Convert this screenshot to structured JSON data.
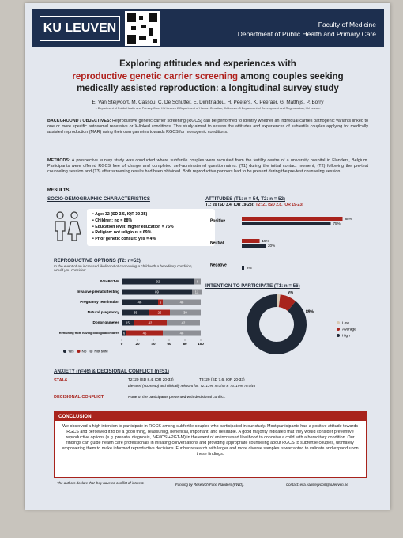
{
  "header": {
    "university": "KU LEUVEN",
    "faculty": "Faculty of Medicine",
    "department": "Department of Public Health and Primary Care"
  },
  "title": {
    "line1": "Exploring attitudes and experiences with",
    "highlight": "reproductive genetic carrier screening",
    "line2_rest": "among couples seeking",
    "line3": "medically assisted reproduction: a longitudinal survey study"
  },
  "authors": "E. Van Steijvoort, M. Cassou, C. De Schutter, E. Dimitriadou, H. Peeters, K. Peeraer, G. Matthijs, P. Borry",
  "affiliations": "1 Department of Public Health and Primary Care, KU Leuven 2 Department of Human Genetics, KU Leuven 3 Department of Development and Regeneration, KU Leuven",
  "background": {
    "label": "BACKGROUND / OBJECTIVES:",
    "text": "Reproductive genetic carrier screening (RGCS) can be performed to identify whether an individual carries pathogenic variants linked to one or more specific autosomal recessive or X-linked conditions. This study aimed to assess the attitudes and experiences of subfertile couples applying for medically assisted reproduction (MAR) using their own gametes towards RGCS for monogenic conditions."
  },
  "methods": {
    "label": "METHODS:",
    "text": "A prospective survey study was conducted where subfertile couples were recruited from the fertility centre of a university hospital in Flanders, Belgium. Participants were offered RGCS free of charge and completed self-administered questionnaires: (T1) during the initial contact moment, (T2) following the pre-test counseling session and (T3) after screening results had been obtained. Both reproductive partners had to be present during the pre-test counseling session."
  },
  "results_label": "RESULTS:",
  "socio": {
    "heading": "SOCIO-DEMOGRAPHIC CHARACTERISTICS",
    "items": [
      "Age: 32 (SD 3.5, IQR 30-35)",
      "Children: no = 88%",
      "Education level: higher education = 75%",
      "Religion: not religious = 69%",
      "Prior genetic consult: yes = 4%"
    ]
  },
  "chart_data": [
    {
      "type": "grouped-hbar",
      "title": "ATTITUDES (T1: n = 54, T2: n = 52)",
      "subtitle_t1": "T1: 20 (SD 3.4, IQR 19-23);",
      "subtitle_t2": "T2: 21 (SD 2.8, IQR 19-23)",
      "categories": [
        "Positive",
        "Neutral",
        "Negative"
      ],
      "xlim": [
        0,
        100
      ],
      "series": [
        {
          "color": "#a8231c",
          "values": [
            85,
            15,
            null
          ],
          "value_labels": [
            "85%",
            "15%",
            null
          ]
        },
        {
          "color": "#1f2836",
          "values": [
            75,
            20,
            2
          ],
          "value_labels": [
            "75%",
            "20%",
            "2%"
          ]
        }
      ]
    },
    {
      "type": "stacked-hbar",
      "title": "REPRODUCTIVE OPTIONS (T2: n=52)",
      "subtitle": "In the event of an increased likelihood of conceiving a child with a hereditary condition, would you consider:",
      "categories": [
        "IVF+PGT-M",
        "Invasive prenatal testing",
        "Pregnancy termination",
        "Natural pregnancy",
        "Donor gametes",
        "Refraining from having biological children"
      ],
      "xlim": [
        0,
        100
      ],
      "xticks": [
        0,
        20,
        40,
        60,
        80,
        100
      ],
      "series": [
        {
          "name": "Yes",
          "color": "#1f2836",
          "values": [
            92,
            89,
            46,
            35,
            15,
            6
          ]
        },
        {
          "name": "No",
          "color": "#a8231c",
          "values": [
            null,
            null,
            6,
            26,
            42,
            46
          ]
        },
        {
          "name": "Not sure",
          "color": "#8e9096",
          "values": [
            8,
            12,
            48,
            39,
            42,
            48
          ]
        }
      ]
    },
    {
      "type": "donut",
      "title": "INTENTION TO PARTICIPATE (T1: n = 56)",
      "categories": [
        "Low",
        "Average",
        "High"
      ],
      "values": [
        2,
        9,
        89
      ],
      "value_labels": [
        null,
        "9%",
        "89%"
      ],
      "colors": [
        "#d8c9b3",
        "#a8231c",
        "#1f2836"
      ]
    }
  ],
  "anxiety": {
    "heading": "ANXIETY (n=46) & DECISIONAL CONFLICT (n=51)",
    "stai_label": "STAI-6",
    "stai_t2": "T2: 29 (SD 8.4, IQR 20-33)",
    "stai_t3": "T3: 29 (SD 7.6, IQR 20-33)",
    "stai_note": "Elevated (score≥40) and clinically relevant for: T2: 13%, n=7/52 & T3: 15%, n=7/46",
    "dc_label": "DECISIONAL CONFLICT",
    "dc_text": "None of the participants presented with decisional conflict."
  },
  "conclusion": {
    "heading": "CONCLUSION",
    "text": "We observed a high intention to participate in RGCS among subfertile couples who participated in our study. Most participants had a positive attitude towards RGCS and perceived it to be a good thing, reassuring, beneficial, important, and desirable. A good majority indicated that they would consider preventive reproductive options (e.g. prenatal diagnosis, IVF/ICSI+PGT-M) in the event of an increased likelihood to conceive a child with a hereditary condition. Our findings can guide health care professionals in initiating conversations and providing appropriate counseling about RGCS to subfertile couples, ultimately empowering them to make informed reproductive decisions. Further research with larger and more diverse samples is warranted to validate and expand upon these findings."
  },
  "footer": {
    "coi": "The authors declare that they have no conflict of interest.",
    "funding": "Funding by Research Fund Flanders (FWO).",
    "contact": "Contact: eva.vansteijvoort@kuleuven.be"
  }
}
